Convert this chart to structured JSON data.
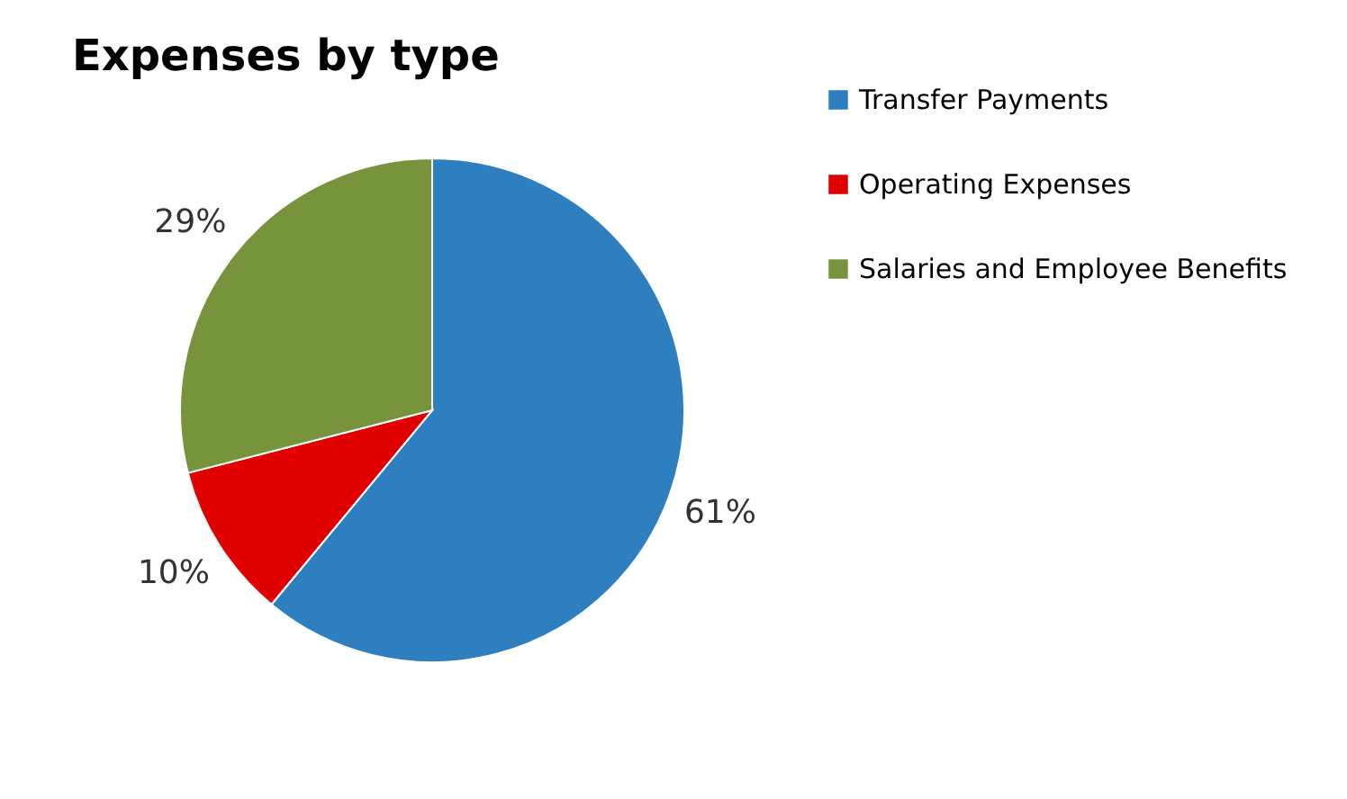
{
  "chart_data": {
    "type": "pie",
    "title": "Expenses by type",
    "categories": [
      "Transfer Payments",
      "Operating Expenses",
      "Salaries and Employee Benefits"
    ],
    "values": [
      61,
      10,
      29
    ],
    "colors": [
      "#2e7fc0",
      "#e00000",
      "#77933c"
    ],
    "value_labels": [
      "61%",
      "10%",
      "29%"
    ],
    "legend": "right"
  }
}
